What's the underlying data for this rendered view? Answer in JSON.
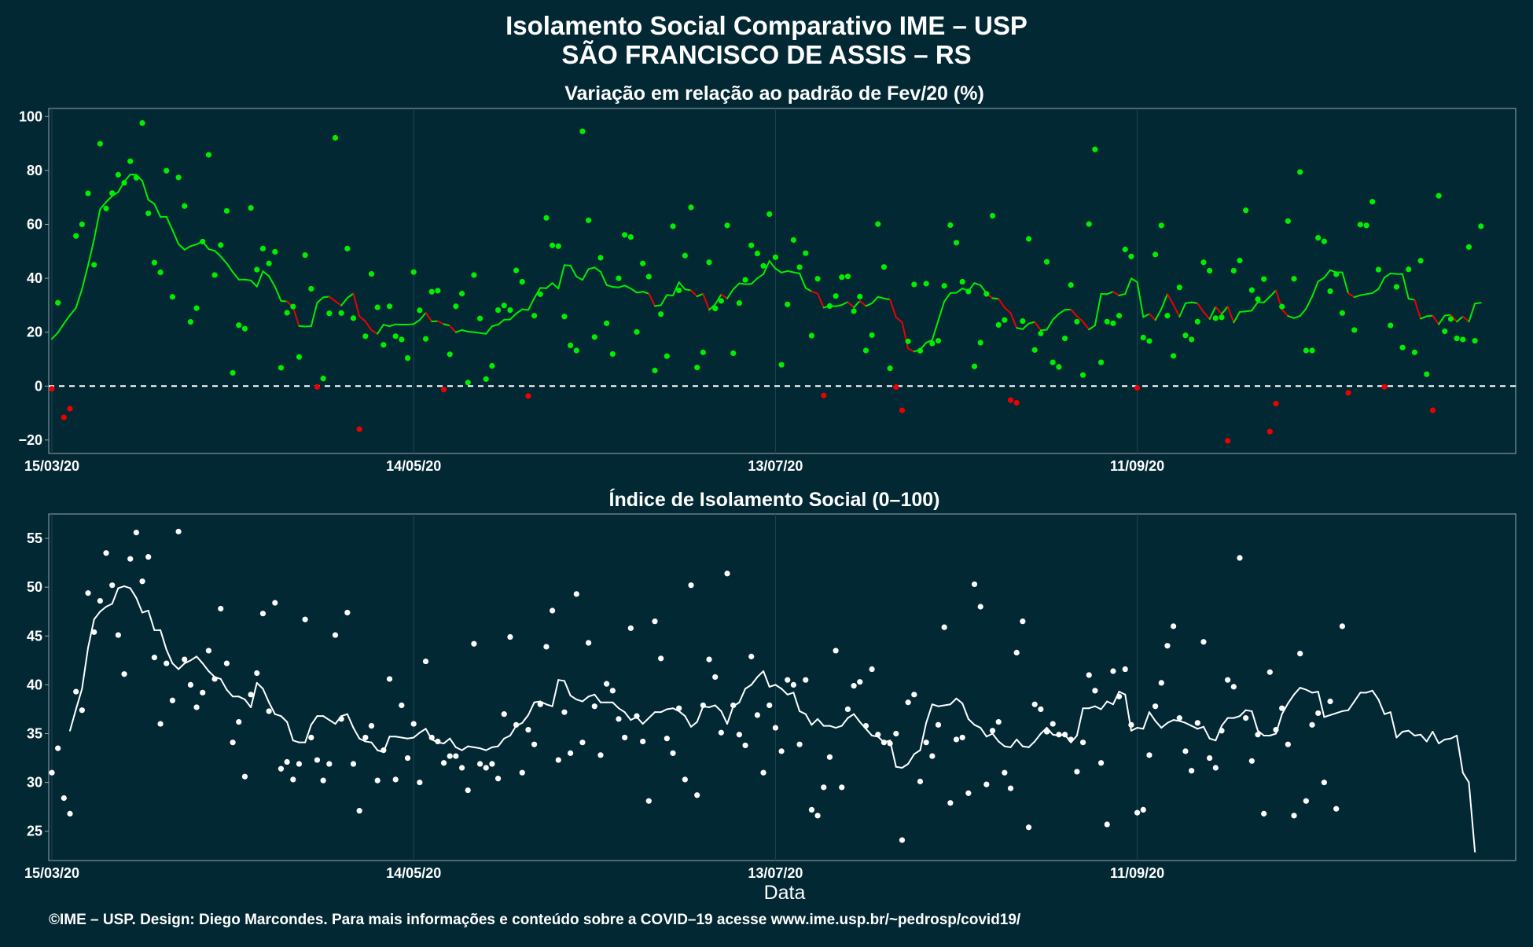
{
  "title_line1": "Isolamento Social Comparativo IME – USP",
  "title_line2": "SÃO FRANCISCO DE ASSIS – RS",
  "footer": "©IME – USP. Design: Diego Marcondes. Para mais informações e conteúdo sobre a COVID–19 acesse www.ime.usp.br/~pedrosp/covid19/",
  "colors": {
    "background": "#022834",
    "positive": "#00ee00",
    "negative": "#ee0000",
    "index": "#ffffff",
    "axis_text": "#ffffff",
    "grid": "#1d4552"
  },
  "chart_data": [
    {
      "type": "scatter",
      "title": "Variação em relação ao padrão de Fev/20 (%)",
      "xlabel": "",
      "ylabel": "",
      "x_start": "15/03/20",
      "x_end": "15/11/20",
      "x_ticks": [
        "15/03/20",
        "14/05/20",
        "13/07/20",
        "11/09/20"
      ],
      "x_tick_offsets_days": [
        0,
        60,
        120,
        180
      ],
      "ylim": [
        -25,
        103
      ],
      "y_ticks": [
        -20,
        0,
        20,
        40,
        60,
        80,
        100
      ],
      "reference_line": 0,
      "grid": true,
      "series": [
        {
          "kind": "points",
          "values": [
            -1.0,
            30.9,
            -11.6,
            -8.4,
            55.7,
            60.0,
            71.5,
            45.0,
            89.9,
            65.9,
            71.6,
            78.4,
            75.4,
            83.4,
            77.3,
            97.6,
            64.1,
            45.8,
            42.2,
            79.9,
            33.1,
            77.4,
            66.8,
            23.8,
            28.9,
            53.6,
            85.8,
            41.2,
            52.3,
            65.0,
            4.9,
            22.6,
            21.3,
            66.1,
            43.2,
            51.0,
            45.5,
            49.8,
            6.8,
            27.2,
            29.5,
            10.8,
            48.6,
            36.1,
            -0.3,
            2.8,
            27.0,
            92.1,
            27.1,
            51.0,
            25.2,
            -16.0,
            18.5,
            41.6,
            29.2,
            15.3,
            29.6,
            18.5,
            17.3,
            10.4,
            42.3,
            28.1,
            17.5,
            35.0,
            35.4,
            -1.3,
            11.8,
            29.6,
            34.3,
            1.3,
            41.2,
            25.1,
            2.6,
            7.5,
            28.2,
            29.9,
            28.2,
            42.9,
            38.7,
            -3.7,
            26.1,
            34.1,
            62.4,
            52.2,
            51.9,
            25.8,
            15.1,
            13.2,
            94.5,
            61.5,
            18.2,
            47.6,
            23.3,
            11.9,
            40.0,
            56.1,
            55.3,
            20.1,
            45.5,
            40.6,
            5.8,
            26.7,
            11.1,
            59.3,
            35.5,
            48.4,
            66.3,
            6.9,
            12.5,
            45.9,
            28.8,
            31.6,
            59.6,
            12.2,
            30.8,
            39.4,
            52.2,
            49.2,
            44.6,
            63.8,
            47.8,
            7.9,
            30.3,
            54.2,
            44.1,
            49.3,
            18.7,
            39.8,
            -3.5,
            29.7,
            33.4,
            40.4,
            40.7,
            27.8,
            33.2,
            13.2,
            18.9,
            60.1,
            44.2,
            6.6,
            -0.4,
            -9.0,
            16.6,
            37.7,
            13.1,
            38.0,
            15.8,
            16.8,
            37.2,
            59.7,
            53.2,
            38.7,
            35.1,
            7.3,
            16.1,
            34.2,
            63.2,
            22.7,
            24.5,
            -5.2,
            -6.2,
            24.1,
            54.6,
            13.4,
            19.5,
            46.1,
            8.8,
            7.1,
            17.7,
            37.5,
            23.9,
            4.1,
            60.1,
            87.8,
            8.8,
            23.9,
            23.3,
            26.1,
            50.7,
            48.1,
            -0.7,
            18.0,
            16.7,
            48.8,
            59.6,
            26.1,
            11.2,
            36.6,
            18.8,
            17.3,
            23.9,
            45.9,
            42.8,
            25.2,
            25.5,
            -20.3,
            42.8,
            46.6,
            65.2,
            35.6,
            32.2,
            39.7,
            -16.9,
            -6.5,
            29.5,
            61.2,
            39.8,
            79.4,
            13.2,
            13.2,
            55.0,
            53.7,
            35.2,
            41.5,
            27.1,
            -2.5,
            20.8,
            59.9,
            59.6,
            68.4,
            43.2,
            -0.3,
            22.5,
            36.8,
            14.3,
            43.3,
            12.5,
            46.5,
            4.4,
            -9.0,
            70.6,
            20.3,
            24.9,
            17.7,
            17.3,
            51.6,
            16.8,
            59.3
          ]
        },
        {
          "kind": "moving_average",
          "start_index": 0,
          "values": [
            17.5,
            19.8,
            23.2,
            26.3,
            29.0,
            36.0,
            44.8,
            54.4,
            65.6,
            68.3,
            70.5,
            72.0,
            75.8,
            78.5,
            78.4,
            76.1,
            69.1,
            67.6,
            62.8,
            62.8,
            57.9,
            52.7,
            50.6,
            51.9,
            52.6,
            53.7,
            50.8,
            50.2,
            48.1,
            45.5,
            42.3,
            39.5,
            39.5,
            39.2,
            36.9,
            42.6,
            40.8,
            36.9,
            31.6,
            31.4,
            29.2,
            22.3,
            22.1,
            22.2,
            30.9,
            32.9,
            33.2,
            31.5,
            29.9,
            32.7,
            34.3,
            25.9,
            24.0,
            20.7,
            19.4,
            22.8,
            22.2,
            22.9,
            22.8,
            22.8,
            23.0,
            24.5,
            27.2,
            24.0,
            24.1,
            23.0,
            22.4,
            20.0,
            20.8,
            20.2,
            20.0,
            19.7,
            19.4,
            22.2,
            22.8,
            24.6,
            24.7,
            26.9,
            28.5,
            28.2,
            32.6,
            36.4,
            36.3,
            38.2,
            36.2,
            44.9,
            44.7,
            40.6,
            39.4,
            43.4,
            44.0,
            42.4,
            37.5,
            36.8,
            36.6,
            37.3,
            36.2,
            34.7,
            35.0,
            34.3,
            29.7,
            30.0,
            33.8,
            33.6,
            38.5,
            35.9,
            35.5,
            33.3,
            34.2,
            28.3,
            30.3,
            34.0,
            32.5,
            35.9,
            38.1,
            37.8,
            37.9,
            40.0,
            41.5,
            46.4,
            43.6,
            42.1,
            42.7,
            42.2,
            41.8,
            36.4,
            35.1,
            34.3,
            29.1,
            29.7,
            29.6,
            30.1,
            31.2,
            29.2,
            31.6,
            29.7,
            30.7,
            33.1,
            32.5,
            32.1,
            25.5,
            23.7,
            13.9,
            12.8,
            13.5,
            16.1,
            17.1,
            24.3,
            31.4,
            34.5,
            34.6,
            36.2,
            35.3,
            38.2,
            37.4,
            34.4,
            32.6,
            32.4,
            29.1,
            27.1,
            21.6,
            21.1,
            23.2,
            23.8,
            20.7,
            20.9,
            24.6,
            26.8,
            28.3,
            28.4,
            25.9,
            23.9,
            21.0,
            22.5,
            34.2,
            34.1,
            35.0,
            33.6,
            34.2,
            39.9,
            38.6,
            25.6,
            26.8,
            24.5,
            28.6,
            34.1,
            30.2,
            25.7,
            30.7,
            31.1,
            30.7,
            27.5,
            24.9,
            29.4,
            26.7,
            29.5,
            23.6,
            27.5,
            27.7,
            28.0,
            31.2,
            31.0,
            33.2,
            35.5,
            28.4,
            26.0,
            25.2,
            26.0,
            28.7,
            33.2,
            38.8,
            40.2,
            43.0,
            42.2,
            42.2,
            34.4,
            33.0,
            33.7,
            34.1,
            34.5,
            36.0,
            40.3,
            41.8,
            41.6,
            41.5,
            32.4,
            32.0,
            25.0,
            25.9,
            26.1,
            22.9,
            26.2,
            26.4,
            23.9,
            25.8,
            23.9,
            30.6,
            30.9
          ]
        }
      ]
    },
    {
      "type": "scatter",
      "title": "Índice de Isolamento Social (0–100)",
      "xlabel": "Data",
      "ylabel": "",
      "x_start": "15/03/20",
      "x_end": "15/11/20",
      "x_ticks": [
        "15/03/20",
        "14/05/20",
        "13/07/20",
        "11/09/20"
      ],
      "x_tick_offsets_days": [
        0,
        60,
        120,
        180
      ],
      "ylim": [
        22.0,
        57.5
      ],
      "y_ticks": [
        25,
        30,
        35,
        40,
        45,
        50,
        55
      ],
      "grid": true,
      "series": [
        {
          "kind": "points",
          "values": [
            31.0,
            33.5,
            28.4,
            26.8,
            39.3,
            37.4,
            49.4,
            45.4,
            48.6,
            53.5,
            50.2,
            45.1,
            41.1,
            52.9,
            55.6,
            50.6,
            53.1,
            42.8,
            36.0,
            42.2,
            38.4,
            55.7,
            42.6,
            40.0,
            37.7,
            39.2,
            43.5,
            40.6,
            47.8,
            42.2,
            34.1,
            36.2,
            30.6,
            39.0,
            41.2,
            47.3,
            37.3,
            48.4,
            31.4,
            32.1,
            30.3,
            31.9,
            46.7,
            34.6,
            32.3,
            30.2,
            31.9,
            45.1,
            36.5,
            47.4,
            31.9,
            27.1,
            34.6,
            35.8,
            30.2,
            33.3,
            40.6,
            30.3,
            37.9,
            32.5,
            36.0,
            30.0,
            42.4,
            34.6,
            34.2,
            32.0,
            32.7,
            32.7,
            31.5,
            29.2,
            44.2,
            31.9,
            31.5,
            31.9,
            30.4,
            37.0,
            44.9,
            35.9,
            31.0,
            35.4,
            33.9,
            38.0,
            43.9,
            47.6,
            32.3,
            37.2,
            33.0,
            49.3,
            34.1,
            44.3,
            37.8,
            32.8,
            40.1,
            39.4,
            36.5,
            34.6,
            45.8,
            36.8,
            34.2,
            28.1,
            46.5,
            42.7,
            34.5,
            33.0,
            37.6,
            30.3,
            50.2,
            28.7,
            37.9,
            42.6,
            40.8,
            35.1,
            51.4,
            37.9,
            34.9,
            33.8,
            42.9,
            36.9,
            31.0,
            37.9,
            35.6,
            33.2,
            40.5,
            40.0,
            33.9,
            40.5,
            27.2,
            26.6,
            29.5,
            32.6,
            43.5,
            29.5,
            37.5,
            39.9,
            40.3,
            35.8,
            41.6,
            34.9,
            34.1,
            34.0,
            35.0,
            24.1,
            38.2,
            39.0,
            30.1,
            34.1,
            32.7,
            35.9,
            45.9,
            27.9,
            34.4,
            34.6,
            28.9,
            50.3,
            48.0,
            29.8,
            35.3,
            36.2,
            31.0,
            29.4,
            43.3,
            46.5,
            25.4,
            38.0,
            37.5,
            35.2,
            36.0,
            34.9,
            34.9,
            34.4,
            31.1,
            34.1,
            41.0,
            39.4,
            32.0,
            25.7,
            41.4,
            38.8,
            41.6,
            35.9,
            26.9,
            27.2,
            32.8,
            37.8,
            40.2,
            44.0,
            46.0,
            36.6,
            33.2,
            31.2,
            36.1,
            44.4,
            32.5,
            31.5,
            35.3,
            40.5,
            39.8,
            53.0,
            36.6,
            32.2,
            34.9,
            26.8,
            41.3,
            35.4,
            37.6,
            33.9,
            26.6,
            43.2,
            28.1,
            35.9,
            37.1,
            30.0,
            38.3,
            27.3,
            46.0
          ]
        },
        {
          "kind": "moving_average",
          "start_index": 3,
          "values": [
            35.3,
            37.5,
            39.6,
            43.8,
            46.7,
            47.5,
            48.0,
            48.3,
            49.9,
            50.1,
            49.9,
            48.9,
            47.4,
            47.6,
            45.6,
            45.6,
            43.6,
            42.2,
            41.6,
            42.2,
            42.5,
            42.9,
            42.2,
            41.4,
            40.8,
            40.6,
            39.5,
            38.8,
            38.8,
            38.5,
            37.7,
            40.2,
            39.6,
            38.2,
            37.0,
            36.8,
            36.2,
            34.3,
            34.1,
            34.1,
            35.9,
            36.8,
            36.8,
            36.4,
            36.0,
            36.8,
            37.0,
            35.6,
            34.5,
            34.2,
            34.1,
            33.3,
            33.1,
            34.7,
            34.7,
            34.6,
            34.5,
            34.6,
            35.1,
            35.5,
            34.4,
            34.1,
            34.0,
            34.5,
            33.6,
            33.3,
            33.7,
            33.6,
            33.5,
            33.3,
            33.6,
            33.7,
            34.5,
            34.8,
            35.8,
            36.1,
            36.9,
            38.2,
            38.3,
            38.0,
            37.8,
            40.5,
            40.4,
            38.9,
            38.5,
            38.3,
            38.8,
            39.0,
            38.2,
            38.2,
            38.2,
            37.6,
            37.2,
            36.4,
            36.7,
            36.0,
            36.6,
            37.2,
            37.2,
            37.5,
            37.6,
            37.3,
            36.8,
            35.7,
            36.2,
            37.8,
            37.7,
            37.9,
            37.3,
            36.0,
            37.8,
            38.2,
            39.6,
            40.0,
            40.8,
            41.4,
            39.8,
            40.0,
            39.6,
            39.0,
            39.2,
            37.3,
            37.0,
            35.9,
            36.5,
            35.8,
            35.8,
            35.6,
            35.8,
            36.6,
            37.0,
            36.2,
            35.5,
            34.8,
            34.7,
            34.1,
            34.3,
            31.6,
            31.5,
            31.9,
            32.9,
            33.3,
            36.1,
            38.0,
            37.8,
            37.9,
            38.0,
            38.6,
            38.1,
            36.5,
            35.9,
            35.6,
            34.7,
            35.0,
            34.2,
            33.7,
            33.6,
            34.4,
            33.7,
            33.6,
            34.2,
            35.0,
            35.6,
            34.9,
            34.8,
            34.9,
            34.1,
            34.8,
            37.6,
            37.6,
            37.8,
            37.5,
            38.3,
            38.0,
            39.3,
            39.0,
            35.3,
            35.6,
            35.5,
            37.2,
            36.3,
            35.6,
            36.1,
            36.4,
            36.3,
            36.1,
            35.8,
            35.5,
            35.7,
            34.5,
            34.3,
            35.8,
            36.6,
            36.6,
            36.8,
            37.4,
            37.3,
            35.3,
            34.8,
            34.8,
            35.0,
            37.0,
            38.1,
            39.0,
            39.7,
            39.5,
            39.2,
            39.3,
            36.7,
            36.9,
            37.1,
            37.3,
            37.4,
            38.3,
            39.2,
            39.2,
            39.4,
            38.5,
            37.0,
            37.2,
            34.6,
            35.2,
            35.3,
            34.8,
            34.9,
            34.2,
            35.2,
            34.0,
            34.4,
            34.5,
            34.8,
            31.0,
            30.0,
            22.9
          ]
        }
      ]
    }
  ]
}
